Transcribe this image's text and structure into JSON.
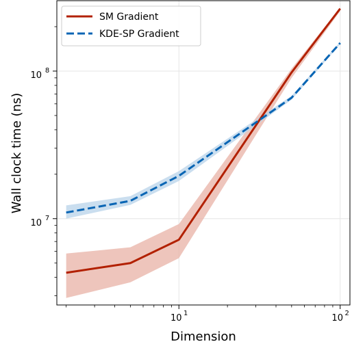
{
  "chart_data": {
    "type": "line",
    "x_scale": "log",
    "y_scale": "log",
    "xlabel": "Dimension",
    "ylabel": "Wall clock time (ns)",
    "xlim": [
      1.75,
      115
    ],
    "ylim": [
      2600000,
      300000000
    ],
    "x_ticks": [
      {
        "value": 10,
        "base": "10",
        "exp": "1"
      },
      {
        "value": 100,
        "base": "10",
        "exp": "2"
      }
    ],
    "y_ticks": [
      {
        "value": 10000000,
        "base": "10",
        "exp": "7"
      },
      {
        "value": 100000000,
        "base": "10",
        "exp": "8"
      }
    ],
    "grid": true,
    "legend_position": "top-left",
    "series": [
      {
        "name": "SM Gradient",
        "color": "#b22000",
        "band_color": "#e8b1a6",
        "style": "solid",
        "x": [
          2,
          5,
          10,
          50,
          100
        ],
        "y": [
          4300000,
          5000000,
          7200000,
          98000000,
          265000000
        ],
        "y_low": [
          2900000,
          3700000,
          5400000,
          90000000,
          255000000
        ],
        "y_high": [
          5800000,
          6400000,
          9200000,
          104000000,
          270000000
        ]
      },
      {
        "name": "KDE-SP Gradient",
        "color": "#0865b4",
        "band_color": "#b8d3ea",
        "style": "dashed",
        "x": [
          2,
          5,
          10,
          50,
          100
        ],
        "y": [
          11000000,
          13200000,
          19500000,
          66000000,
          155000000
        ],
        "y_low": [
          10000000,
          12400000,
          18000000,
          64000000,
          152000000
        ],
        "y_high": [
          12300000,
          14200000,
          21000000,
          68000000,
          158000000
        ]
      }
    ]
  }
}
